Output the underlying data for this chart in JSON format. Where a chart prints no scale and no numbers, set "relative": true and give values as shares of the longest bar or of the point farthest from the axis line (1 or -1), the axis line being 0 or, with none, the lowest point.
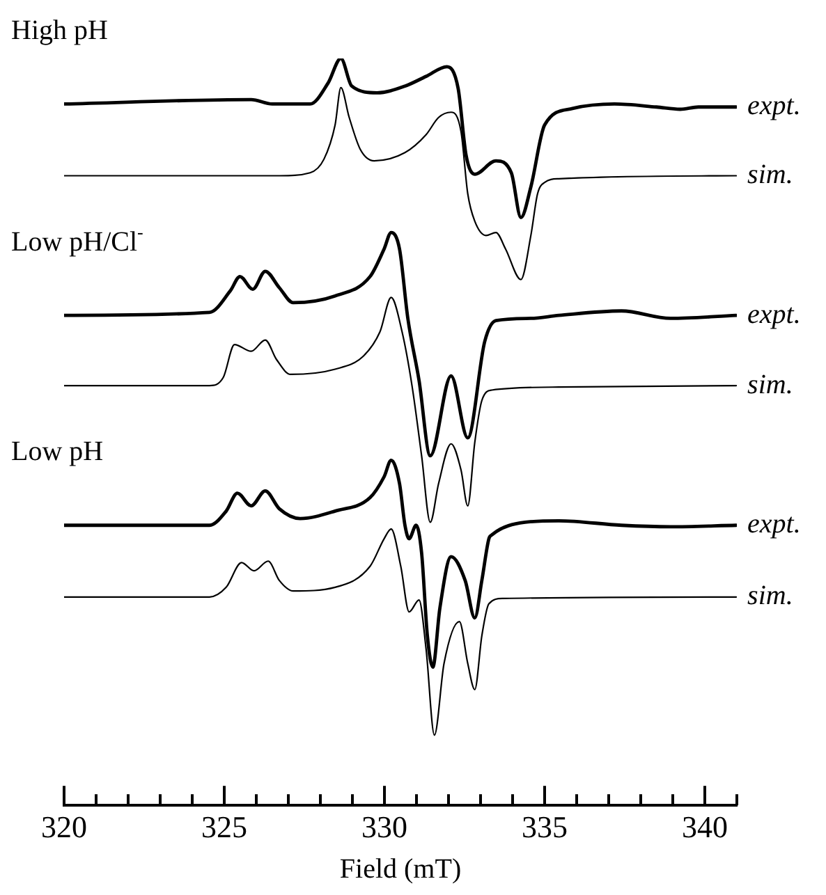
{
  "chart_data": {
    "type": "line",
    "relative": true,
    "xlabel": "Field (mT)",
    "annotations": [
      "High pH",
      "Low pH/Cl$^{-}$",
      "Low pH"
    ],
    "xlim": [
      320,
      341
    ],
    "xticks": [
      320,
      {
        "value": 321,
        "label": null
      },
      {
        "value": 322,
        "label": null
      },
      {
        "value": 323,
        "label": null
      },
      {
        "value": 324,
        "label": null
      },
      325,
      {
        "value": 326,
        "label": null
      },
      {
        "value": 327,
        "label": null
      },
      {
        "value": 328,
        "label": null
      },
      {
        "value": 329,
        "label": null
      },
      330,
      {
        "value": 331,
        "label": null
      },
      {
        "value": 332,
        "label": null
      },
      {
        "value": 333,
        "label": null
      },
      {
        "value": 334,
        "label": null
      },
      335,
      {
        "value": 336,
        "label": null
      },
      {
        "value": 337,
        "label": null
      },
      {
        "value": 338,
        "label": null
      },
      {
        "value": 339,
        "label": null
      },
      340,
      {
        "value": 341,
        "label": null
      }
    ],
    "tick_labels": "x",
    "grid": false,
    "legend": false,
    "series": [
      {
        "name": "expt.",
        "color": "#000000",
        "x": [
          320.0,
          325.84,
          326.5,
          327.68,
          328.24,
          328.64,
          328.98,
          329.77,
          330.64,
          331.3,
          331.95,
          332.3,
          332.55,
          332.82,
          333.48,
          333.96,
          334.26,
          334.57,
          335.0,
          335.87,
          337.18,
          338.49,
          339.23,
          339.8,
          340.98
        ],
        "values": [
          0.939,
          0.945,
          0.939,
          0.939,
          0.967,
          1.0,
          0.963,
          0.954,
          0.963,
          0.976,
          0.989,
          0.96,
          0.87,
          0.845,
          0.863,
          0.847,
          0.787,
          0.828,
          0.911,
          0.933,
          0.939,
          0.935,
          0.932,
          0.935,
          0.935
        ]
      },
      {
        "name": "sim.",
        "color": "#000000",
        "x": [
          320.0,
          326.72,
          327.68,
          328.11,
          328.46,
          328.64,
          328.9,
          329.25,
          329.68,
          330.64,
          331.3,
          331.69,
          332.08,
          332.39,
          332.6,
          332.82,
          333.17,
          333.48,
          333.78,
          334.26,
          334.57,
          334.78,
          335.0,
          335.44,
          340.98
        ],
        "values": [
          0.843,
          0.843,
          0.847,
          0.865,
          0.911,
          0.961,
          0.921,
          0.878,
          0.863,
          0.874,
          0.898,
          0.921,
          0.928,
          0.902,
          0.819,
          0.782,
          0.763,
          0.767,
          0.745,
          0.704,
          0.763,
          0.819,
          0.834,
          0.839,
          0.843
        ]
      },
      {
        "name": "expt.",
        "color": "#000000",
        "x": [
          320.0,
          324.54,
          325.19,
          325.49,
          325.89,
          326.28,
          326.72,
          327.15,
          328.46,
          329.55,
          329.99,
          330.21,
          330.47,
          330.73,
          331.08,
          331.43,
          332.08,
          332.6,
          333.13,
          333.48,
          334.57,
          335.44,
          337.4,
          338.93,
          340.98
        ],
        "values": [
          0.656,
          0.66,
          0.689,
          0.708,
          0.691,
          0.715,
          0.693,
          0.673,
          0.682,
          0.708,
          0.745,
          0.767,
          0.745,
          0.652,
          0.569,
          0.468,
          0.575,
          0.492,
          0.621,
          0.649,
          0.652,
          0.656,
          0.662,
          0.652,
          0.656
        ]
      },
      {
        "name": "sim.",
        "color": "#000000",
        "x": [
          320.0,
          324.54,
          324.97,
          325.32,
          325.84,
          326.28,
          326.63,
          327.07,
          328.46,
          329.33,
          329.86,
          330.21,
          330.55,
          330.86,
          331.16,
          331.43,
          331.69,
          332.08,
          332.39,
          332.6,
          332.82,
          333.04,
          333.35,
          335.44,
          340.98
        ],
        "values": [
          0.562,
          0.562,
          0.573,
          0.617,
          0.608,
          0.623,
          0.597,
          0.577,
          0.584,
          0.601,
          0.634,
          0.68,
          0.634,
          0.562,
          0.468,
          0.379,
          0.431,
          0.484,
          0.449,
          0.401,
          0.486,
          0.542,
          0.556,
          0.56,
          0.562
        ]
      },
      {
        "name": "expt.",
        "color": "#000000",
        "x": [
          320.0,
          324.54,
          325.06,
          325.41,
          325.84,
          326.28,
          326.72,
          327.37,
          328.46,
          329.55,
          329.99,
          330.21,
          330.47,
          330.64,
          330.77,
          330.99,
          331.16,
          331.34,
          331.51,
          331.73,
          332.08,
          332.52,
          332.82,
          333.04,
          333.26,
          333.35,
          334.39,
          335.44,
          337.4,
          338.93,
          340.98
        ],
        "values": [
          0.375,
          0.375,
          0.394,
          0.418,
          0.401,
          0.421,
          0.397,
          0.384,
          0.394,
          0.412,
          0.44,
          0.462,
          0.431,
          0.375,
          0.357,
          0.375,
          0.338,
          0.227,
          0.185,
          0.264,
          0.333,
          0.301,
          0.251,
          0.301,
          0.357,
          0.362,
          0.379,
          0.381,
          0.375,
          0.373,
          0.375
        ]
      },
      {
        "name": "sim.",
        "color": "#000000",
        "x": [
          320.0,
          324.54,
          325.06,
          325.54,
          325.93,
          326.37,
          326.72,
          327.15,
          328.46,
          329.55,
          329.99,
          330.21,
          330.51,
          330.77,
          331.08,
          331.3,
          331.56,
          331.86,
          332.34,
          332.6,
          332.82,
          333.04,
          333.26,
          333.69,
          340.98
        ],
        "values": [
          0.279,
          0.279,
          0.292,
          0.325,
          0.314,
          0.327,
          0.301,
          0.287,
          0.292,
          0.32,
          0.357,
          0.37,
          0.32,
          0.259,
          0.275,
          0.209,
          0.094,
          0.19,
          0.246,
          0.19,
          0.155,
          0.227,
          0.27,
          0.277,
          0.279
        ]
      }
    ]
  }
}
